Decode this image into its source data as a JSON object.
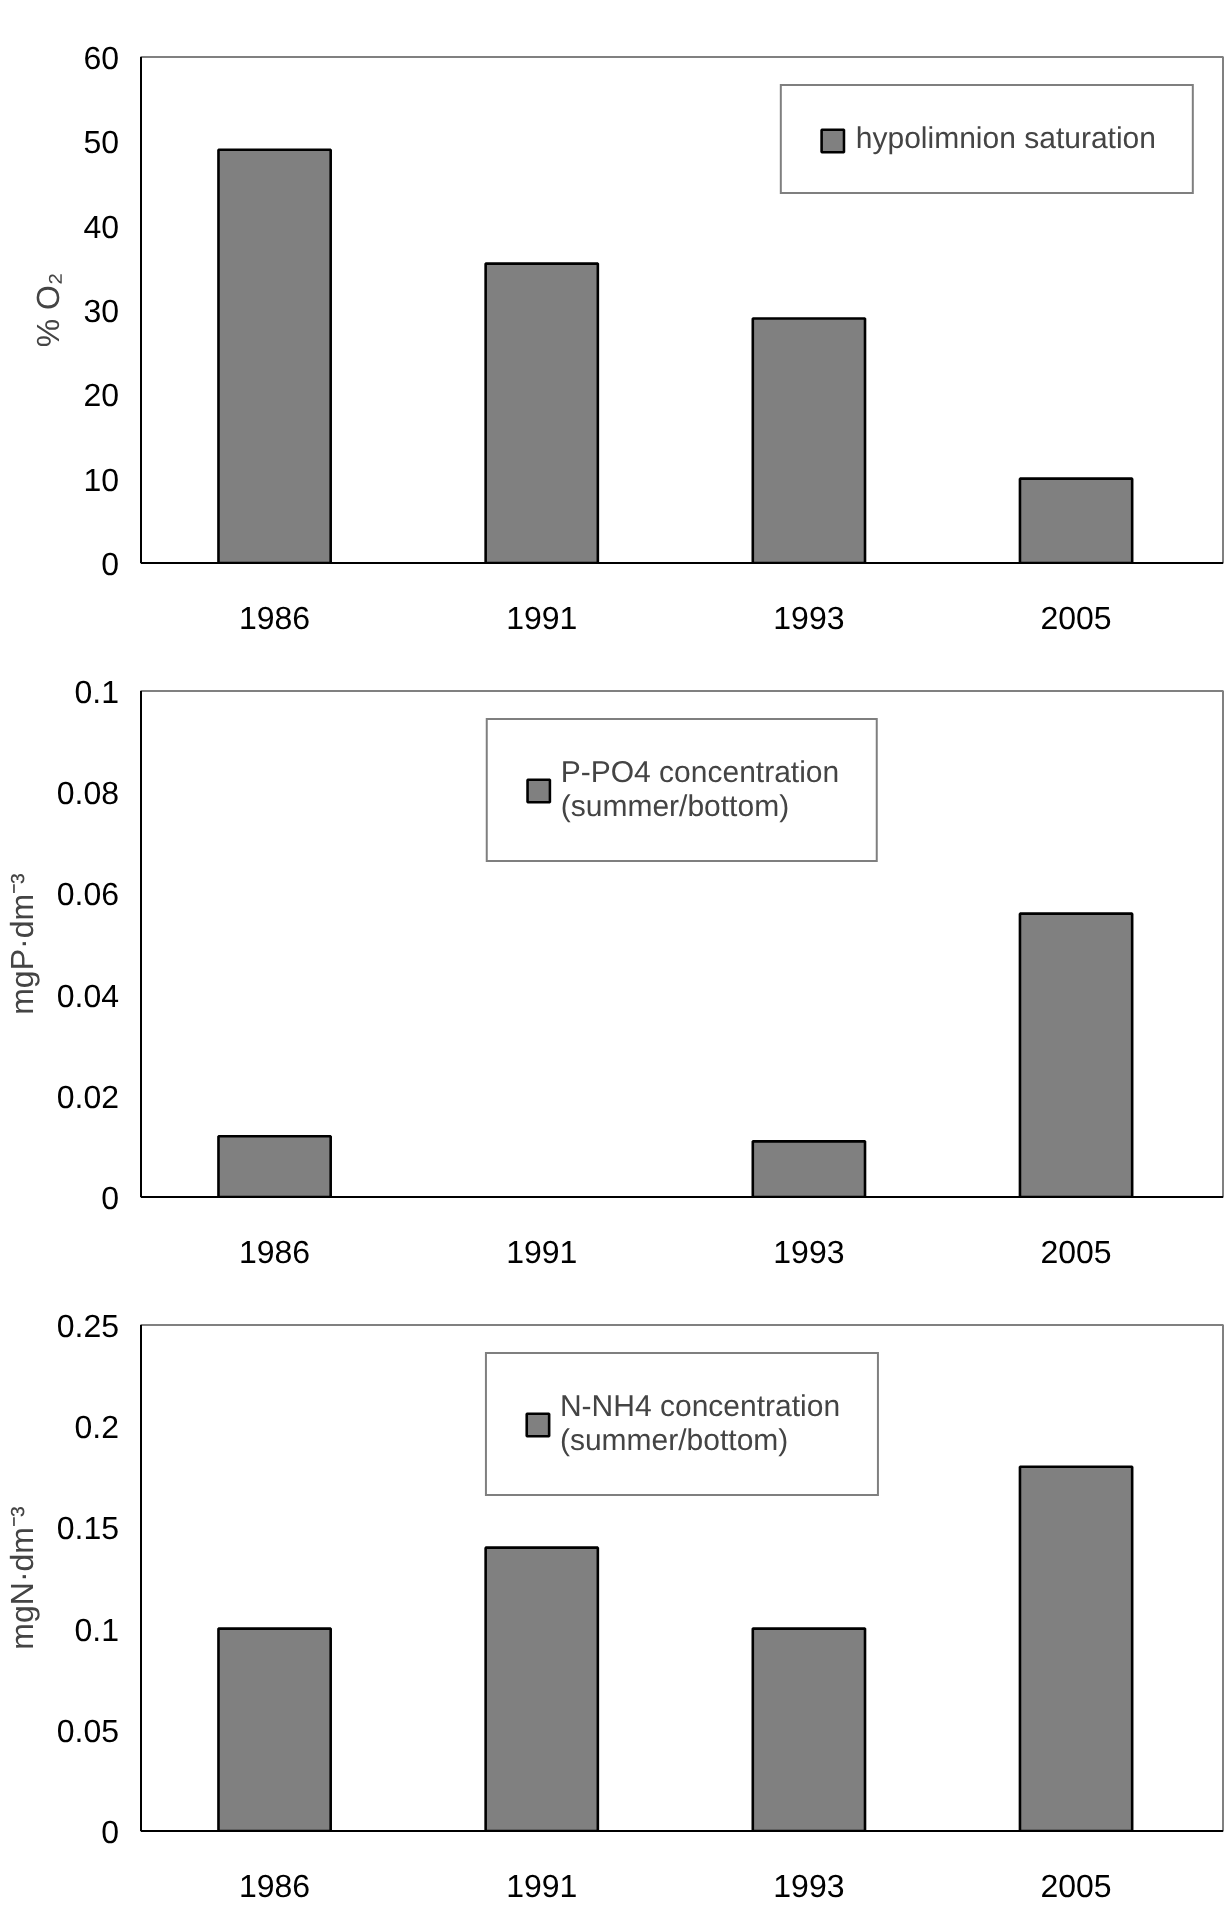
{
  "chart_data": [
    {
      "type": "bar",
      "categories": [
        "1986",
        "1991",
        "1993",
        "2005"
      ],
      "ylabel": "% O₂",
      "series": [
        {
          "name": "hypolimnion saturation",
          "color": "#808080",
          "values": [
            49,
            35.5,
            29,
            10
          ]
        }
      ],
      "ylim": [
        0,
        60
      ],
      "yticks": [
        0,
        10,
        20,
        30,
        40,
        50,
        60
      ],
      "grid": false,
      "legend": "top right"
    },
    {
      "type": "bar",
      "categories": [
        "1986",
        "1991",
        "1993",
        "2005"
      ],
      "ylabel": "mgP·dm⁻³",
      "series": [
        {
          "name": "P-PO4 concentration\n(summer/bottom)",
          "color": "#808080",
          "values": [
            0.012,
            null,
            0.011,
            0.056
          ]
        }
      ],
      "ylim": [
        0,
        0.1
      ],
      "yticks": [
        0,
        {
          "value": 0.02,
          "label": "0.02"
        },
        {
          "value": 0.04,
          "label": "0.04"
        },
        {
          "value": 0.06,
          "label": "0.06"
        },
        {
          "value": 0.08,
          "label": "0.08"
        },
        {
          "value": 0.1,
          "label": "0.1"
        }
      ],
      "grid": false,
      "legend": "top"
    },
    {
      "type": "bar",
      "categories": [
        "1986",
        "1991",
        "1993",
        "2005"
      ],
      "ylabel": "mgN·dm⁻³",
      "series": [
        {
          "name": "N-NH4 concentration\n(summer/bottom)",
          "color": "#808080",
          "values": [
            0.1,
            0.14,
            0.1,
            0.18
          ]
        }
      ],
      "ylim": [
        0,
        0.25
      ],
      "yticks": [
        0,
        {
          "value": 0.05,
          "label": "0.05"
        },
        {
          "value": 0.1,
          "label": "0.1"
        },
        {
          "value": 0.15,
          "label": "0.15"
        },
        {
          "value": 0.2,
          "label": "0.2"
        },
        {
          "value": 0.25,
          "label": "0.25"
        }
      ],
      "grid": false,
      "legend": "top"
    }
  ]
}
